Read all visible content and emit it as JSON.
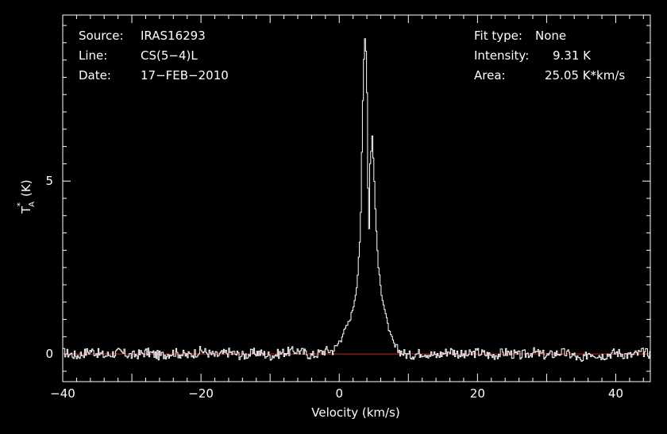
{
  "chart_data": {
    "type": "line",
    "title": "",
    "xlabel": "Velocity (km/s)",
    "ylabel": "T_A^* (K)",
    "ylabel_main": "T",
    "ylabel_sub": "A",
    "ylabel_sup": "*",
    "ylabel_unit": "(K)",
    "xlim": [
      -40,
      45
    ],
    "ylim": [
      -0.8,
      9.8
    ],
    "x_ticks": [
      -40,
      -20,
      0,
      20,
      40
    ],
    "x_tick_labels": [
      "−40",
      "−20",
      "0",
      "20",
      "40"
    ],
    "y_ticks": [
      0,
      5
    ],
    "y_tick_labels": [
      "0",
      "5"
    ],
    "grid": false,
    "baseline": {
      "y": 0,
      "color": "#cc2222"
    },
    "series": [
      {
        "color": "#ffffff",
        "style": "step",
        "points": [
          [
            -40,
            0.05
          ],
          [
            -38,
            -0.05
          ],
          [
            -36,
            0.1
          ],
          [
            -34,
            -0.05
          ],
          [
            -32,
            0.05
          ],
          [
            -30,
            -0.05
          ],
          [
            -28,
            0.05
          ],
          [
            -26,
            -0.05
          ],
          [
            -24,
            0.05
          ],
          [
            -22,
            -0.05
          ],
          [
            -20,
            0.1
          ],
          [
            -18,
            -0.05
          ],
          [
            -16,
            0.05
          ],
          [
            -14,
            -0.05
          ],
          [
            -12,
            0.05
          ],
          [
            -10,
            -0.05
          ],
          [
            -8,
            0.05
          ],
          [
            -6,
            0.1
          ],
          [
            -4,
            -0.05
          ],
          [
            -2,
            0.1
          ],
          [
            -1,
            0.1
          ],
          [
            -0.5,
            0.2
          ],
          [
            0,
            0.4
          ],
          [
            0.5,
            0.6
          ],
          [
            1,
            0.8
          ],
          [
            1.5,
            1.0
          ],
          [
            2,
            1.4
          ],
          [
            2.5,
            2.0
          ],
          [
            3,
            3.5
          ],
          [
            3.3,
            7.0
          ],
          [
            3.6,
            9.3
          ],
          [
            3.9,
            8.5
          ],
          [
            4.2,
            3.0
          ],
          [
            4.4,
            5.5
          ],
          [
            4.7,
            6.3
          ],
          [
            5,
            5.0
          ],
          [
            5.3,
            3.5
          ],
          [
            5.6,
            2.5
          ],
          [
            6,
            1.8
          ],
          [
            6.5,
            1.3
          ],
          [
            7,
            0.8
          ],
          [
            7.5,
            0.4
          ],
          [
            8,
            0.2
          ],
          [
            8.5,
            0.1
          ],
          [
            9,
            0.05
          ],
          [
            10,
            -0.05
          ],
          [
            12,
            0.05
          ],
          [
            14,
            -0.05
          ],
          [
            16,
            0.1
          ],
          [
            18,
            -0.05
          ],
          [
            20,
            0.05
          ],
          [
            22,
            -0.05
          ],
          [
            24,
            0.05
          ],
          [
            26,
            -0.05
          ],
          [
            28,
            0.05
          ],
          [
            30,
            -0.05
          ],
          [
            32,
            0.05
          ],
          [
            34,
            -0.05
          ],
          [
            35,
            -0.25
          ],
          [
            36,
            0.05
          ],
          [
            38,
            -0.05
          ],
          [
            40,
            0.05
          ],
          [
            42,
            -0.05
          ],
          [
            44,
            0.05
          ],
          [
            45,
            0
          ]
        ]
      }
    ]
  },
  "info_left": [
    {
      "label": "Source:",
      "value": "IRAS16293"
    },
    {
      "label": "Line:",
      "value": "CS(5−4)L"
    },
    {
      "label": "Date:",
      "value": "17−FEB−2010"
    }
  ],
  "info_right": [
    {
      "label": "Fit type:",
      "value": "None"
    },
    {
      "label": "Intensity:",
      "value": "9.31 K"
    },
    {
      "label": "Area:",
      "value": "25.05 K*km/s"
    }
  ]
}
